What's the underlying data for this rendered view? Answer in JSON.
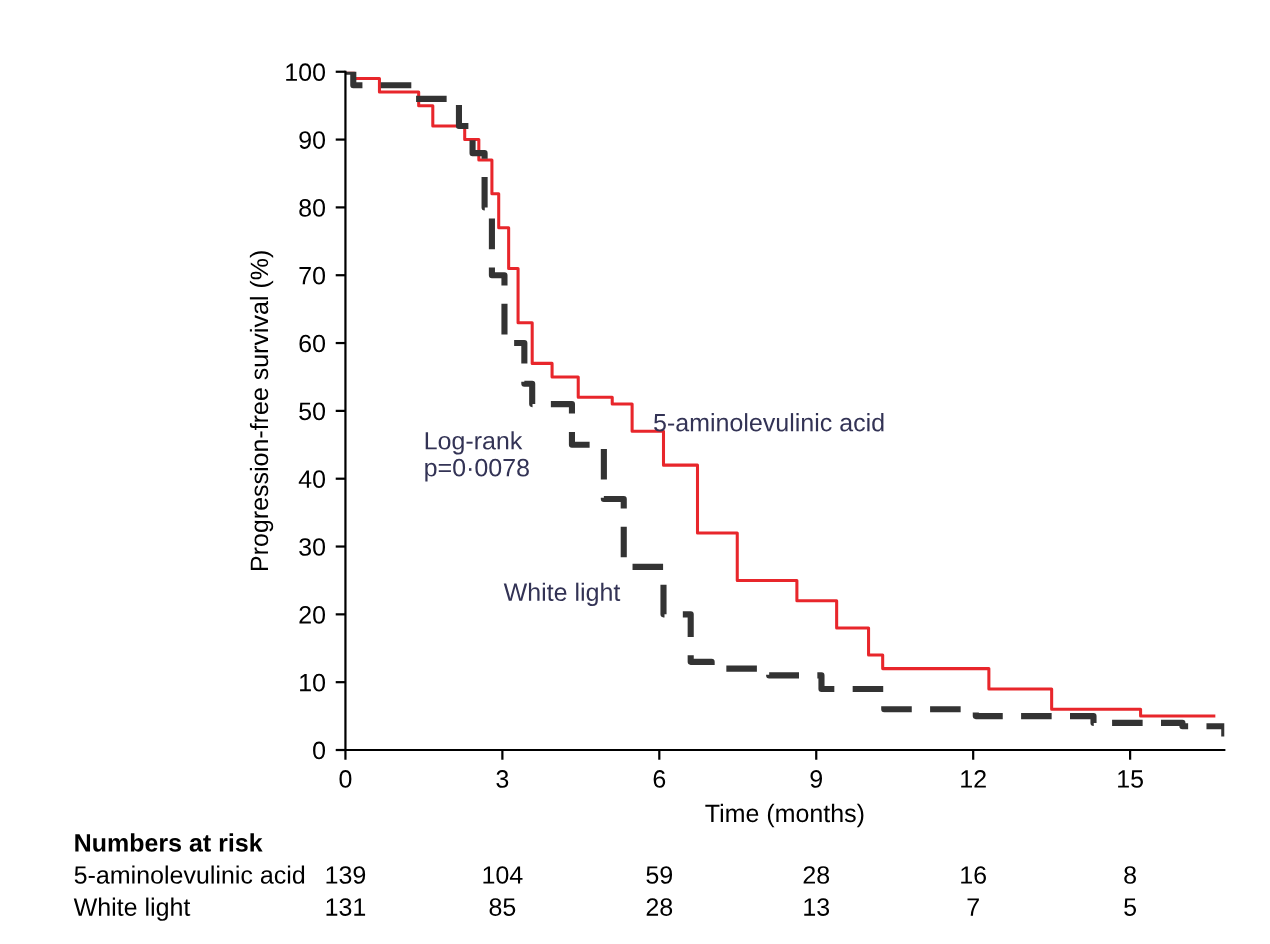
{
  "chart_data": {
    "type": "step",
    "xlabel": "Time (months)",
    "ylabel": "Progression-free survival (%)",
    "xlim": [
      0,
      16.8
    ],
    "ylim": [
      0,
      100
    ],
    "xticks": [
      0,
      3,
      6,
      9,
      12,
      15
    ],
    "yticks": [
      0,
      10,
      20,
      30,
      40,
      50,
      60,
      70,
      80,
      90,
      100
    ],
    "grid": false,
    "legend": false,
    "marker": "none",
    "series": [
      {
        "name": "5-aminolevulinic acid",
        "color": "#e8262b",
        "line_style": "solid",
        "x": [
          0,
          0.15,
          0.65,
          1.4,
          1.67,
          2.28,
          2.55,
          2.8,
          2.93,
          3.12,
          3.3,
          3.57,
          3.95,
          4.45,
          5.1,
          5.48,
          6.08,
          6.73,
          7.49,
          8.63,
          9.39,
          10.0,
          10.27,
          11.4,
          12.3,
          13.5,
          15.2,
          16.6
        ],
        "values": [
          100,
          99,
          97,
          95,
          92,
          90,
          87,
          82,
          77,
          71,
          63,
          57,
          55,
          52,
          51,
          47,
          42,
          32,
          25,
          22,
          18,
          14,
          12,
          12,
          9,
          6,
          5,
          5
        ]
      },
      {
        "name": "White light",
        "color": "#333333",
        "line_style": "dashed",
        "x": [
          0,
          0.15,
          1.3,
          2.17,
          2.43,
          2.66,
          2.8,
          3.04,
          3.42,
          3.57,
          4.33,
          4.94,
          5.32,
          6.08,
          6.6,
          7.0,
          8.1,
          9.1,
          10.3,
          12.05,
          14.3,
          16.0,
          16.8
        ],
        "values": [
          100,
          98,
          96,
          92,
          88,
          80,
          70,
          60,
          54,
          51,
          45,
          37,
          27,
          20,
          13,
          12,
          11,
          9,
          6,
          5,
          4,
          3.5,
          2
        ]
      }
    ],
    "annotations": [
      "Log-rank\np=0·0078",
      "Numbers at risk",
      "5-aminolevulinic acid",
      "139",
      "104",
      "59",
      "28",
      "16",
      "8",
      "White light",
      "131",
      "85",
      "28",
      "13",
      "7",
      "5"
    ]
  }
}
